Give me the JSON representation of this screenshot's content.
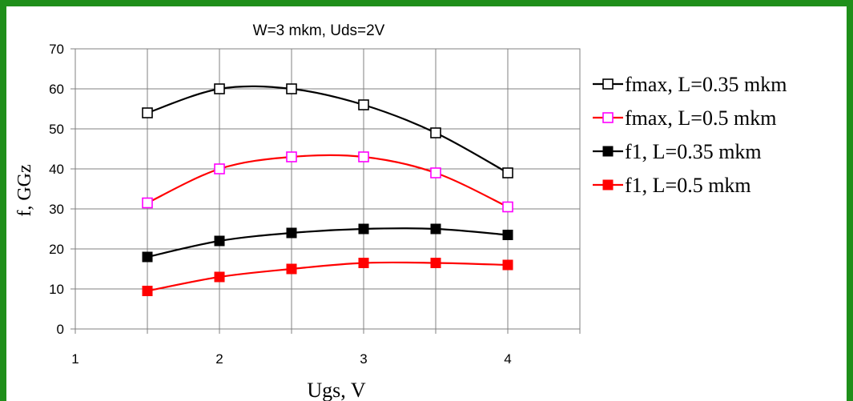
{
  "chart_data": {
    "type": "line",
    "title": "W=3 mkm, Uds=2V",
    "xlabel": "Ugs, V",
    "ylabel": "f, GGz",
    "xlim": [
      1,
      4.5
    ],
    "ylim": [
      0,
      70
    ],
    "x_ticks": [
      "1",
      "2",
      "3",
      "4"
    ],
    "y_ticks": [
      "0",
      "10",
      "20",
      "30",
      "40",
      "50",
      "60",
      "70"
    ],
    "grid": true,
    "legend_position": "right",
    "x": [
      1.5,
      2,
      2.5,
      3,
      3.5,
      4
    ],
    "series": [
      {
        "name": "fmax, L=0.35 mkm",
        "values": [
          54,
          60,
          60,
          56,
          49,
          39
        ],
        "color": "#000000",
        "marker": "hollow-square"
      },
      {
        "name": "fmax, L=0.5 mkm",
        "values": [
          31.5,
          40,
          43,
          43,
          39,
          30.5
        ],
        "color": "#ff0000",
        "marker_color": "#ff00ff",
        "marker": "hollow-square"
      },
      {
        "name": "f1, L=0.35 mkm",
        "values": [
          18,
          22,
          24,
          25,
          25,
          23.5
        ],
        "color": "#000000",
        "marker": "filled-square"
      },
      {
        "name": "f1, L=0.5 mkm",
        "values": [
          9.5,
          13,
          15,
          16.5,
          16.5,
          16
        ],
        "color": "#ff0000",
        "marker": "filled-square"
      }
    ]
  }
}
